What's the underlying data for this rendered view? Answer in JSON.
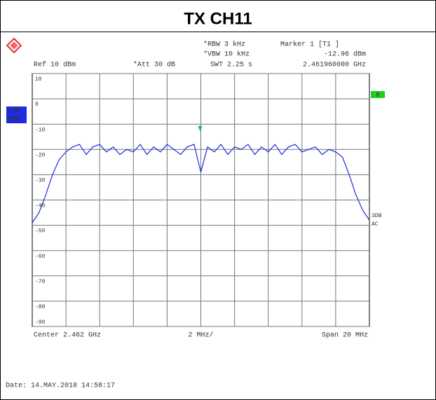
{
  "chart_data": {
    "type": "line",
    "title": "TX CH11",
    "settings": [
      {
        "flag": "",
        "text": "Ref 10 dBm"
      },
      {
        "flag": "*",
        "text": "Att 30 dB"
      },
      {
        "flag": "*",
        "text": "RBW 3 kHz"
      },
      {
        "flag": "*",
        "text": "VBW 10 kHz"
      },
      {
        "flag": "",
        "text": "SWT 2.25 s"
      }
    ],
    "marker": {
      "name": "Marker 1 [T1 ]",
      "level": -12.96,
      "level_label": "-12.96 dBm",
      "frequency": 2.46196,
      "frequency_label": "2.461960000 GHz",
      "color": "#22a8a8"
    },
    "trace_badge": [
      "1 PK",
      "MAXH"
    ],
    "side_badge": "B",
    "side_notes": [
      "3DB",
      "AC"
    ],
    "x_labels": {
      "center": "Center 2.462 GHz",
      "per_div": "2 MHz/",
      "span": "Span 20 MHz"
    },
    "date": "Date: 14.MAY.2018  14:58:17",
    "xlim": [
      2.452,
      2.472
    ],
    "ylim": [
      -90,
      10
    ],
    "yticks": [
      10,
      0,
      -10,
      -20,
      -30,
      -40,
      -50,
      -60,
      -70,
      -80,
      -90
    ],
    "grid": true,
    "series": [
      {
        "name": "1 PK MAXH",
        "color": "#1f2be0",
        "x": [
          2.452,
          2.4524,
          2.4528,
          2.4532,
          2.4536,
          2.454,
          2.4544,
          2.4548,
          2.4552,
          2.4556,
          2.456,
          2.4564,
          2.4568,
          2.4572,
          2.4576,
          2.458,
          2.4584,
          2.4588,
          2.4592,
          2.4596,
          2.46,
          2.4604,
          2.4608,
          2.4612,
          2.4616,
          2.462,
          2.4624,
          2.4628,
          2.4632,
          2.4636,
          2.464,
          2.4644,
          2.4648,
          2.4652,
          2.4656,
          2.466,
          2.4664,
          2.4668,
          2.4672,
          2.4676,
          2.468,
          2.4684,
          2.4688,
          2.4692,
          2.4696,
          2.47,
          2.4704,
          2.4708,
          2.4712,
          2.4716,
          2.472
        ],
        "values": [
          -49,
          -45,
          -38,
          -30,
          -24,
          -21,
          -19,
          -18,
          -22,
          -19,
          -18,
          -21,
          -19,
          -22,
          -20,
          -21,
          -18,
          -22,
          -19,
          -21,
          -18,
          -20,
          -22,
          -19,
          -18,
          -29,
          -19,
          -21,
          -18,
          -22,
          -19,
          -20,
          -18,
          -22,
          -19,
          -21,
          -18,
          -22,
          -19,
          -18,
          -21,
          -20,
          -19,
          -22,
          -20,
          -21,
          -23,
          -30,
          -38,
          -44,
          -48
        ]
      }
    ]
  }
}
